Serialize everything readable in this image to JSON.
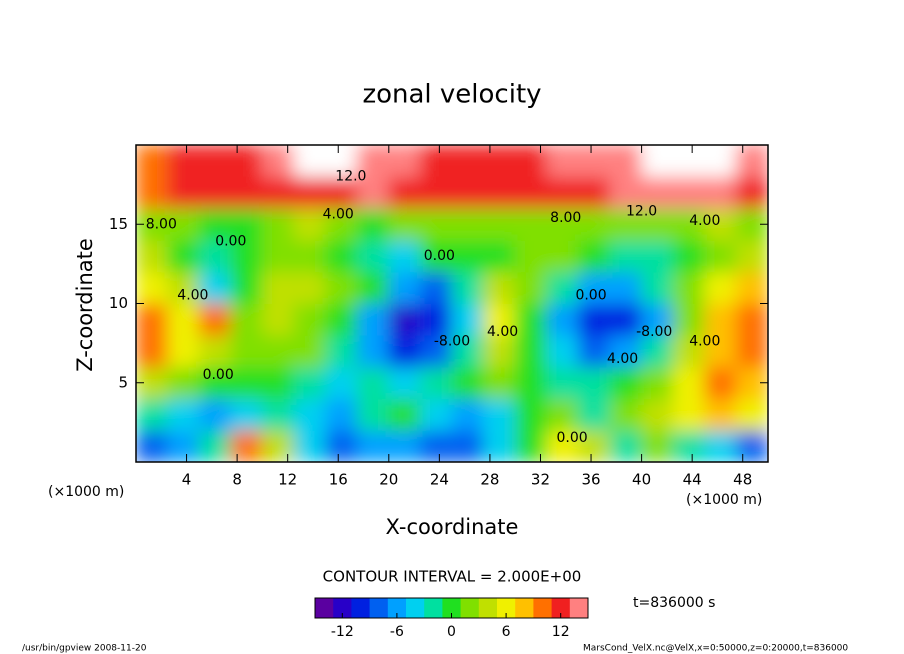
{
  "chart_data": {
    "type": "heatmap",
    "title": "zonal velocity",
    "x_label": "X-coordinate",
    "y_label": "Z-coordinate",
    "x_unit": "(×1000 m)",
    "y_unit": "(×1000 m)",
    "xlim": [
      0,
      50
    ],
    "ylim": [
      0,
      20
    ],
    "xticks": [
      4,
      8,
      12,
      16,
      20,
      24,
      28,
      32,
      36,
      40,
      44,
      48
    ],
    "yticks": [
      5,
      10,
      15
    ],
    "x": [
      1.25,
      3.75,
      6.25,
      8.75,
      11.25,
      13.75,
      16.25,
      18.75,
      21.25,
      23.75,
      26.25,
      28.75,
      31.25,
      33.75,
      36.25,
      38.75,
      41.25,
      43.75,
      46.25,
      48.75
    ],
    "y": [
      1,
      3,
      5,
      7,
      9,
      11,
      13,
      15,
      17,
      19
    ],
    "z": [
      [
        -8,
        -6,
        -2,
        10,
        4,
        -4,
        -8,
        -6,
        -6,
        -8,
        -8,
        -4,
        0,
        6,
        4,
        -2,
        2,
        -2,
        -4,
        -8
      ],
      [
        -2,
        -4,
        -6,
        -4,
        -2,
        -4,
        -6,
        -2,
        0,
        -4,
        -6,
        -4,
        0,
        2,
        -2,
        2,
        4,
        6,
        8,
        6
      ],
      [
        4,
        2,
        0,
        0,
        0,
        -2,
        -4,
        -2,
        -4,
        -2,
        0,
        2,
        0,
        -2,
        -2,
        0,
        2,
        6,
        10,
        8
      ],
      [
        10,
        6,
        4,
        2,
        2,
        1,
        -2,
        -6,
        -10,
        -8,
        -2,
        4,
        0,
        -4,
        -8,
        -6,
        -2,
        4,
        8,
        10
      ],
      [
        10,
        6,
        9,
        2,
        3,
        2,
        0,
        -6,
        -12,
        -10,
        -4,
        6,
        0,
        -6,
        -11,
        -10,
        -6,
        2,
        8,
        10
      ],
      [
        6,
        4,
        -4,
        0,
        3,
        4,
        2,
        0,
        -6,
        -8,
        -2,
        4,
        2,
        -2,
        -6,
        -6,
        -2,
        2,
        6,
        8
      ],
      [
        4,
        0,
        -2,
        0,
        2,
        2,
        0,
        -2,
        -4,
        -1,
        0,
        0,
        2,
        2,
        0,
        -2,
        -2,
        0,
        2,
        4
      ],
      [
        2,
        1,
        0,
        0,
        2,
        3,
        2,
        0,
        1,
        2,
        2,
        2,
        2,
        2,
        1,
        2,
        2,
        2,
        3,
        2
      ],
      [
        10,
        11,
        12,
        12,
        12,
        12,
        12,
        13,
        12,
        12,
        12,
        12,
        12,
        12,
        12,
        13,
        13,
        13,
        13,
        12
      ],
      [
        10,
        11,
        12,
        12,
        14,
        15,
        15,
        14,
        13,
        12,
        12,
        12,
        12,
        13,
        14,
        14,
        15,
        15,
        15,
        14
      ]
    ],
    "colorbar_lim": [
      -15,
      15
    ],
    "colorbar_ticks": [
      -12,
      -6,
      0,
      6,
      12
    ],
    "colormap": [
      "#5a00a0",
      "#2800c8",
      "#0020e0",
      "#0060f0",
      "#00a0ff",
      "#00d0f0",
      "#00e0a0",
      "#20e020",
      "#80e000",
      "#c0e000",
      "#f0f000",
      "#ffc000",
      "#ff7000",
      "#f02020",
      "#ff8080"
    ],
    "over_color": "#ffffff",
    "contour_interval_text": "CONTOUR INTERVAL = 2.000E+00",
    "time_text": "t=836000 s",
    "annotations": [
      {
        "text": "12.0",
        "x": 17,
        "y": 18
      },
      {
        "text": "8.00",
        "x": 2,
        "y": 15
      },
      {
        "text": "4.00",
        "x": 16,
        "y": 15.6
      },
      {
        "text": "8.00",
        "x": 34,
        "y": 15.4
      },
      {
        "text": "12.0",
        "x": 40,
        "y": 15.8
      },
      {
        "text": "4.00",
        "x": 45,
        "y": 15.2
      },
      {
        "text": "0.00",
        "x": 7.5,
        "y": 13.9
      },
      {
        "text": "0.00",
        "x": 24,
        "y": 13
      },
      {
        "text": "4.00",
        "x": 4.5,
        "y": 10.5
      },
      {
        "text": "0.00",
        "x": 6.5,
        "y": 5.5
      },
      {
        "text": "-8.00",
        "x": 25,
        "y": 7.6
      },
      {
        "text": "4.00",
        "x": 29,
        "y": 8.2
      },
      {
        "text": "0.00",
        "x": 36,
        "y": 10.5
      },
      {
        "text": "-8.00",
        "x": 41,
        "y": 8.2
      },
      {
        "text": "4.00",
        "x": 38.5,
        "y": 6.5
      },
      {
        "text": "4.00",
        "x": 45,
        "y": 7.6
      },
      {
        "text": "0.00",
        "x": 34.5,
        "y": 1.5
      }
    ]
  },
  "footer": {
    "left": "/usr/bin/gpview  2008-11-20",
    "right": "MarsCond_VelX.nc@VelX,x=0:50000,z=0:20000,t=836000"
  }
}
